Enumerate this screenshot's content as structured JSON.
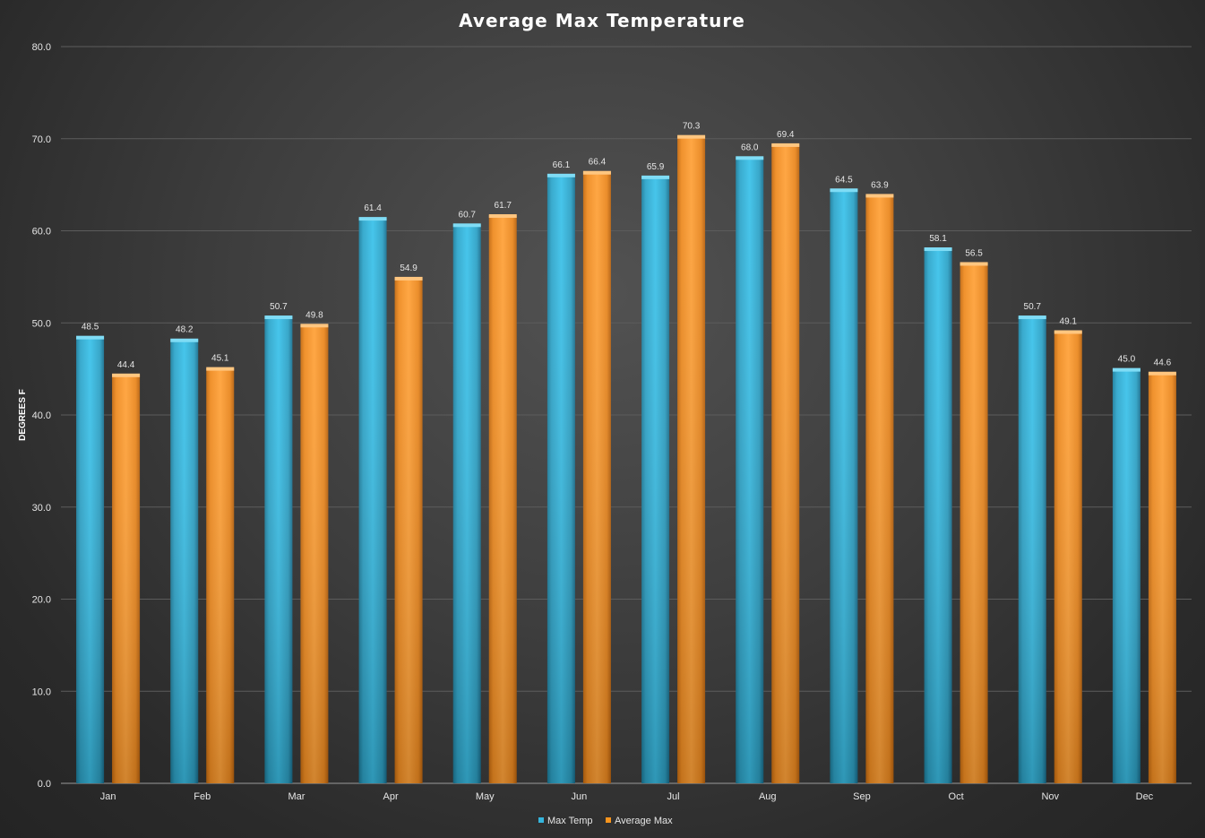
{
  "chart_data": {
    "type": "bar",
    "title": "Average Max Temperature",
    "xlabel": "",
    "ylabel": "DEGREES F",
    "categories": [
      "Jan",
      "Feb",
      "Mar",
      "Apr",
      "May",
      "Jun",
      "Jul",
      "Aug",
      "Sep",
      "Oct",
      "Nov",
      "Dec"
    ],
    "series": [
      {
        "name": "Max Temp",
        "color": "#35b5dd",
        "values": [
          48.5,
          48.2,
          50.7,
          61.4,
          60.7,
          66.1,
          65.9,
          68.0,
          64.5,
          58.1,
          50.7,
          45.0
        ]
      },
      {
        "name": "Average Max",
        "color": "#f7941d",
        "values": [
          44.4,
          45.1,
          49.8,
          54.9,
          61.7,
          66.4,
          70.3,
          69.4,
          63.9,
          56.5,
          49.1,
          44.6
        ]
      }
    ],
    "ylim": [
      0,
      80
    ],
    "yticks": [
      "0.0",
      "10.0",
      "20.0",
      "30.0",
      "40.0",
      "50.0",
      "60.0",
      "70.0",
      "80.0"
    ],
    "value_format": "0.0",
    "grid": true,
    "legend_position": "bottom"
  }
}
